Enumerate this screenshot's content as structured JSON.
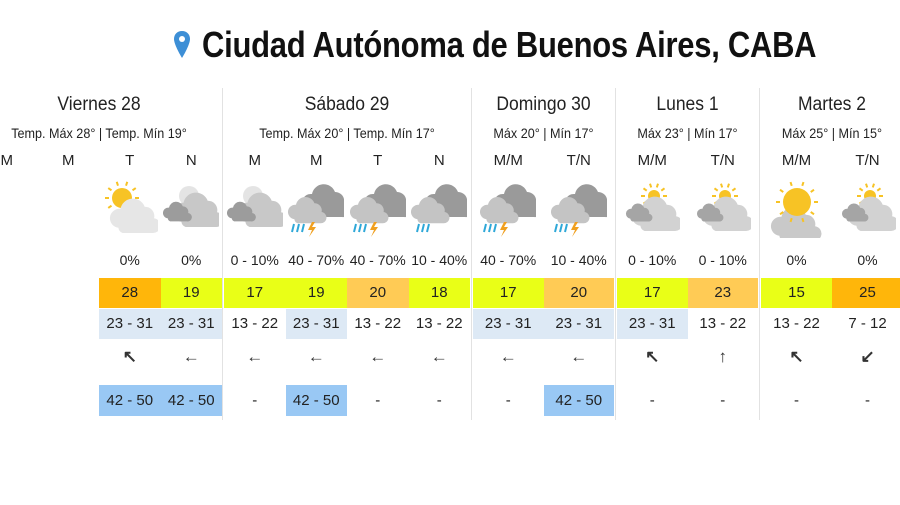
{
  "header": {
    "title": "Ciudad Autónoma de Buenos Aires, CABA",
    "icon": "map-pin-icon",
    "pin_color": "#3d8fd6"
  },
  "colors": {
    "hot": "#ffb60a",
    "mild": "#e9ff17",
    "warm": "#ffcb55",
    "range_hl": "#dde9f5",
    "gust_hl": "#99c8f4"
  },
  "days": [
    {
      "name": "Viernes 28",
      "summary": "Temp. Máx 28° | Temp. Mín 19°",
      "periods": [
        {
          "label": "M",
          "icon": "",
          "precip": "",
          "temp": "",
          "temp_color": "",
          "range": "",
          "range_hl": false,
          "wind": "",
          "gust": "",
          "gust_hl": false
        },
        {
          "label": "M",
          "icon": "",
          "precip": "",
          "temp": "",
          "temp_color": "",
          "range": "",
          "range_hl": false,
          "wind": "",
          "gust": "",
          "gust_hl": false
        },
        {
          "label": "T",
          "icon": "sun-cloud-icon",
          "precip": "0%",
          "temp": "28",
          "temp_color": "hot",
          "range": "23 - 31",
          "range_hl": true,
          "wind": "↖",
          "gust": "42 - 50",
          "gust_hl": true
        },
        {
          "label": "N",
          "icon": "night-cloud-icon",
          "precip": "0%",
          "temp": "19",
          "temp_color": "mild",
          "range": "23 - 31",
          "range_hl": true,
          "wind": "←",
          "gust": "42 - 50",
          "gust_hl": true
        }
      ]
    },
    {
      "name": "Sábado 29",
      "summary": "Temp. Máx 20° | Temp. Mín 17°",
      "periods": [
        {
          "label": "M",
          "icon": "night-cloud-icon",
          "precip": "0 - 10%",
          "temp": "17",
          "temp_color": "mild",
          "range": "13 - 22",
          "range_hl": false,
          "wind": "←",
          "gust": "-",
          "gust_hl": false
        },
        {
          "label": "M",
          "icon": "storm-icon",
          "precip": "40 - 70%",
          "temp": "19",
          "temp_color": "mild",
          "range": "23 - 31",
          "range_hl": true,
          "wind": "←",
          "gust": "42 - 50",
          "gust_hl": true
        },
        {
          "label": "T",
          "icon": "storm-icon",
          "precip": "40 - 70%",
          "temp": "20",
          "temp_color": "warm",
          "range": "13 - 22",
          "range_hl": false,
          "wind": "←",
          "gust": "-",
          "gust_hl": false
        },
        {
          "label": "N",
          "icon": "rain-icon",
          "precip": "10 - 40%",
          "temp": "18",
          "temp_color": "mild",
          "range": "13 - 22",
          "range_hl": false,
          "wind": "←",
          "gust": "-",
          "gust_hl": false
        }
      ]
    },
    {
      "name": "Domingo 30",
      "summary": "Máx 20° | Mín 17°",
      "periods": [
        {
          "label": "M/M",
          "icon": "storm-icon",
          "precip": "40 - 70%",
          "temp": "17",
          "temp_color": "mild",
          "range": "23 - 31",
          "range_hl": true,
          "wind": "←",
          "gust": "-",
          "gust_hl": false
        },
        {
          "label": "T/N",
          "icon": "storm-icon",
          "precip": "10 - 40%",
          "temp": "20",
          "temp_color": "warm",
          "range": "23 - 31",
          "range_hl": true,
          "wind": "←",
          "gust": "42 - 50",
          "gust_hl": true
        }
      ]
    },
    {
      "name": "Lunes 1",
      "summary": "Máx 23° | Mín 17°",
      "periods": [
        {
          "label": "M/M",
          "icon": "partly-cloudy-icon",
          "precip": "0 - 10%",
          "temp": "17",
          "temp_color": "mild",
          "range": "23 - 31",
          "range_hl": true,
          "wind": "↖",
          "gust": "-",
          "gust_hl": false
        },
        {
          "label": "T/N",
          "icon": "partly-cloudy-icon",
          "precip": "0 - 10%",
          "temp": "23",
          "temp_color": "warm",
          "range": "13 - 22",
          "range_hl": false,
          "wind": "↑",
          "gust": "-",
          "gust_hl": false
        }
      ]
    },
    {
      "name": "Martes 2",
      "summary": "Máx 25° | Mín 15°",
      "periods": [
        {
          "label": "M/M",
          "icon": "sunny-cloud-icon",
          "precip": "0%",
          "temp": "15",
          "temp_color": "mild",
          "range": "13 - 22",
          "range_hl": false,
          "wind": "↖",
          "gust": "-",
          "gust_hl": false
        },
        {
          "label": "T/N",
          "icon": "partly-cloudy-icon",
          "precip": "0%",
          "temp": "25",
          "temp_color": "hot",
          "range": "7 - 12",
          "range_hl": false,
          "wind": "↙",
          "gust": "-",
          "gust_hl": false
        }
      ]
    }
  ]
}
